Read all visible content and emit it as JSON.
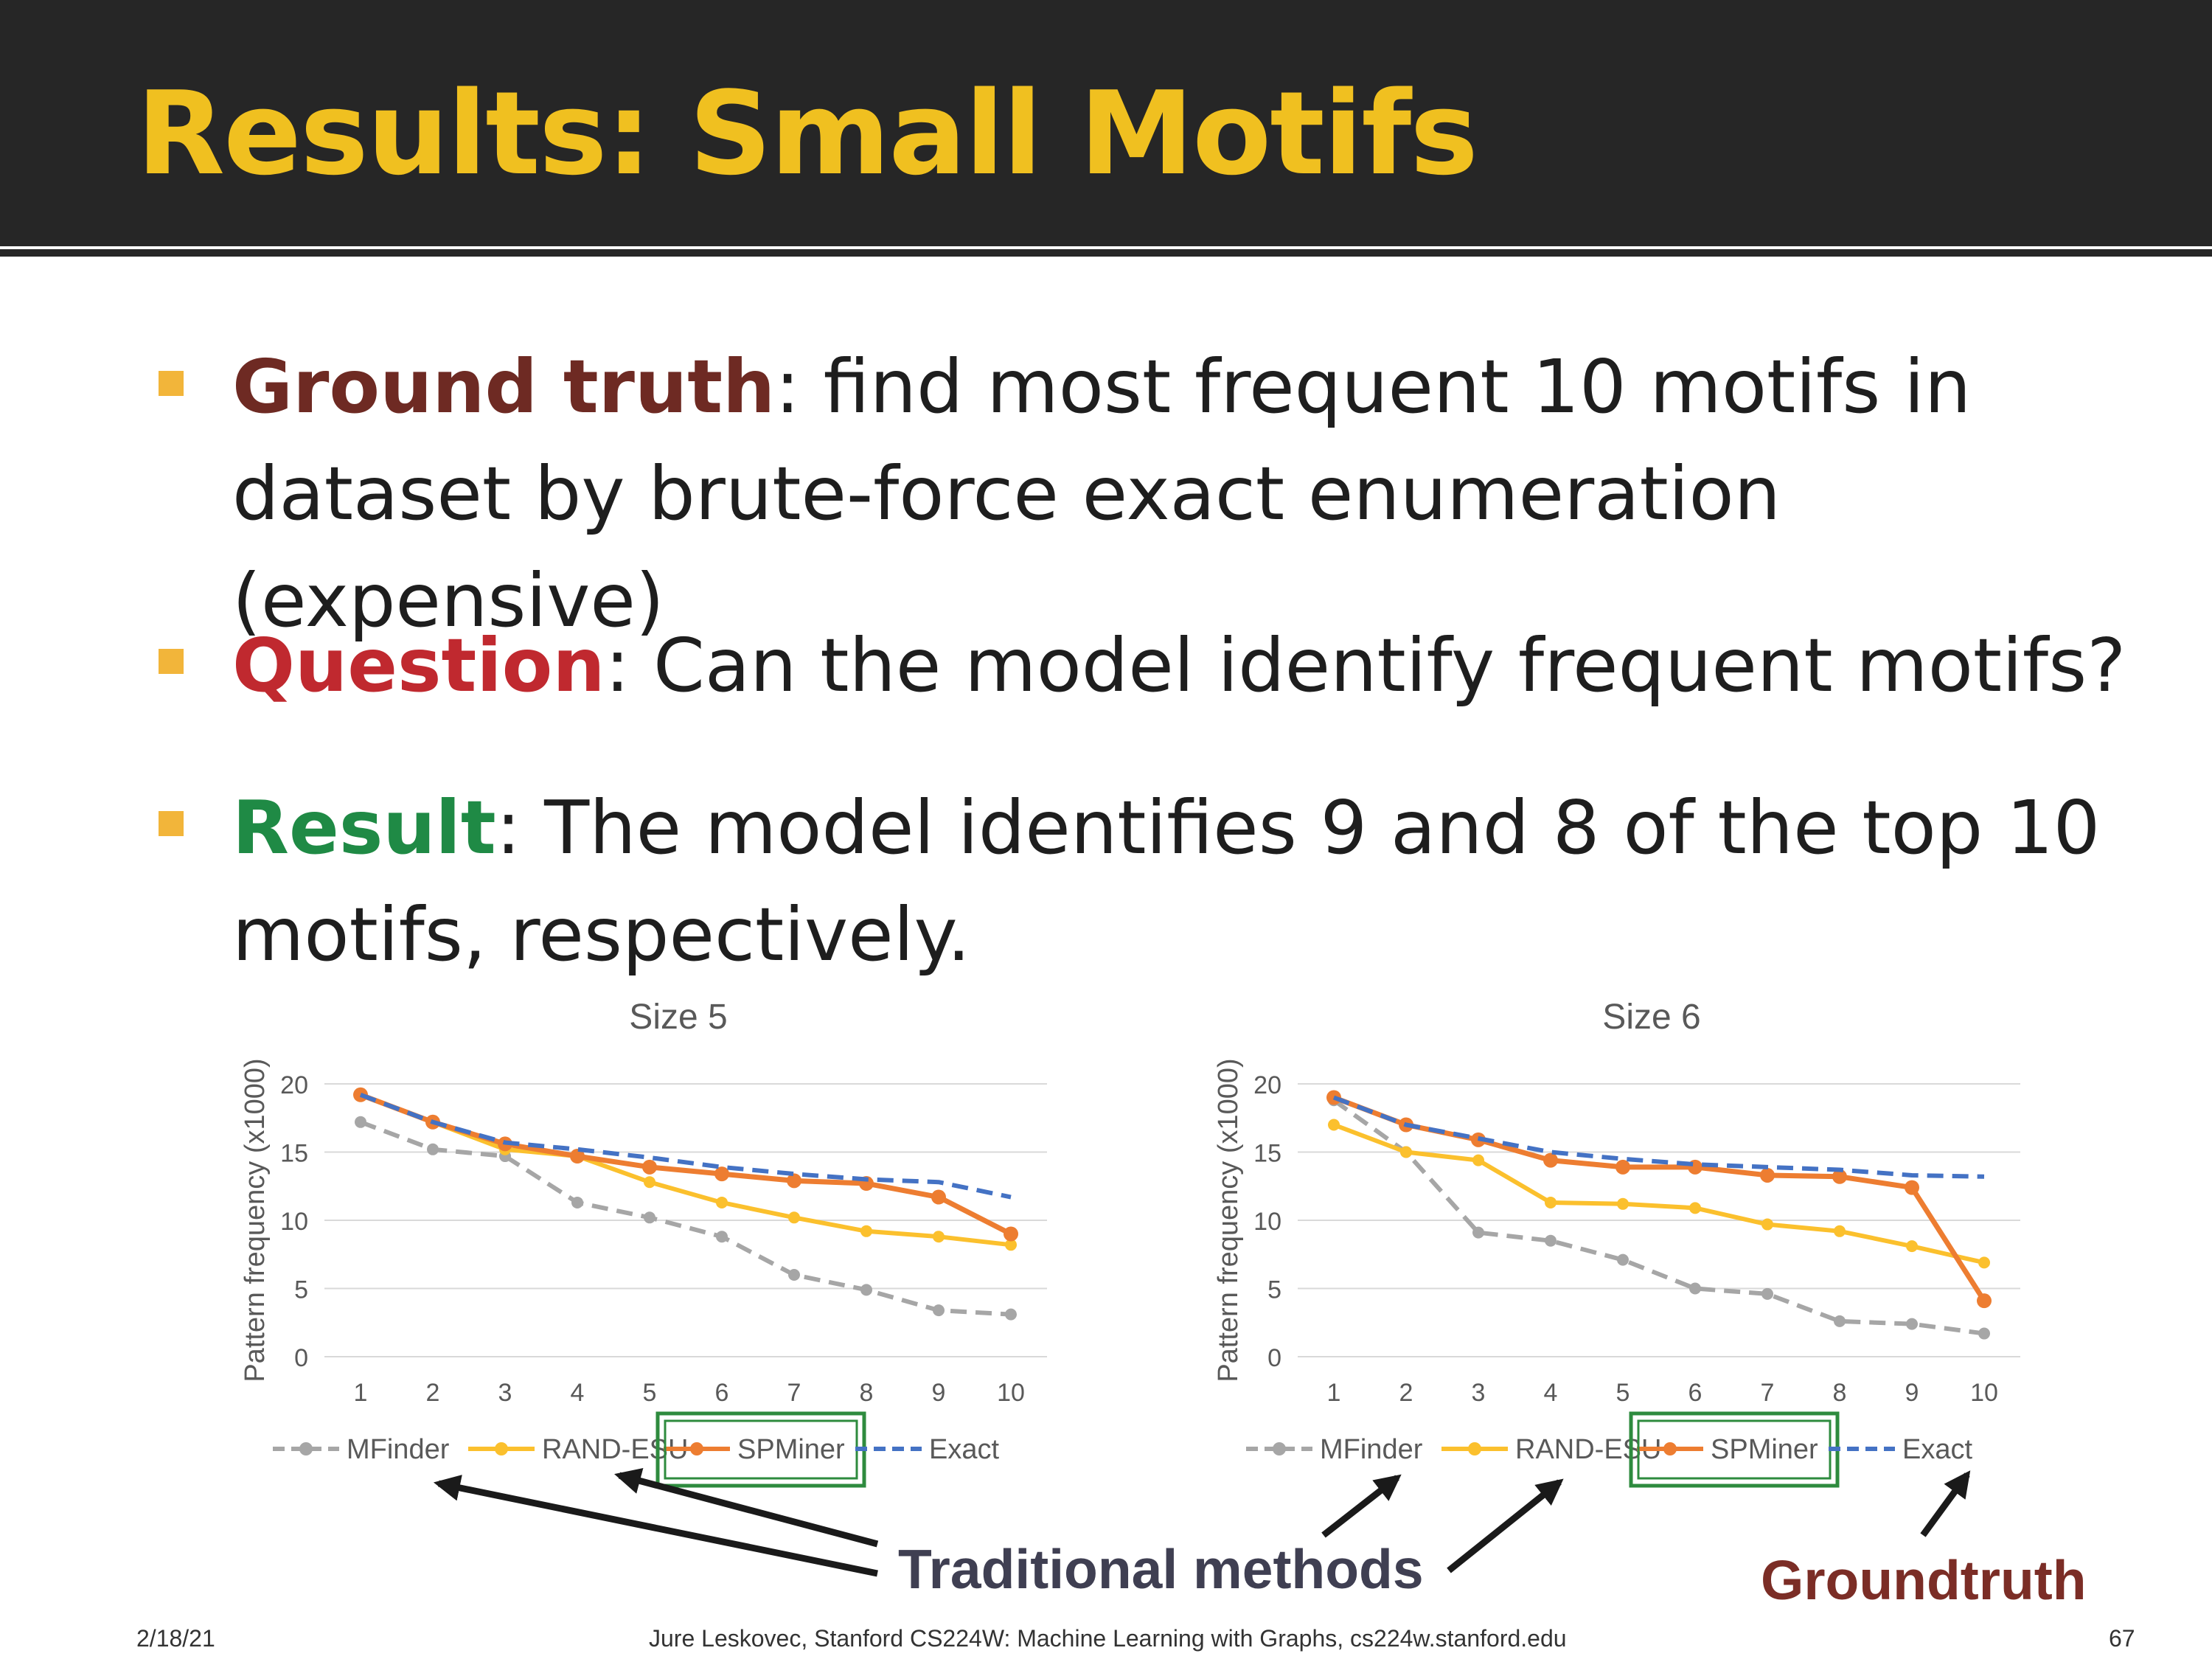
{
  "slide": {
    "title": "Results: Small Motifs",
    "bullets": [
      {
        "keyword": "Ground truth",
        "text": ": find most frequent 10 motifs in dataset by brute-force exact enumeration (expensive)"
      },
      {
        "keyword": "Question",
        "text": ": Can the model identify frequent motifs?"
      },
      {
        "keyword": "Result",
        "text": ": The model identifies 9 and 8 of the top 10 motifs, respectively."
      }
    ],
    "annotations": {
      "traditional": "Traditional methods",
      "groundtruth": "Groundtruth"
    },
    "footer": {
      "date": "2/18/21",
      "credit": "Jure Leskovec, Stanford CS224W: Machine Learning with Graphs, cs224w.stanford.edu",
      "page": "67"
    },
    "colors": {
      "title": "#f0c020",
      "header_bg": "#262626",
      "bullet": "#f2b53a",
      "ground_truth": "#6e2a23",
      "question": "#c0292f",
      "result": "#1f8a45",
      "highlight_box": "#2e8b3e"
    }
  },
  "chart_data": [
    {
      "type": "line",
      "title": "Size 5",
      "ylabel": "Pattern frequency (x1000)",
      "xlabel": "",
      "ylim": [
        0,
        20
      ],
      "yticks": [
        0,
        5,
        10,
        15,
        20
      ],
      "x": [
        1,
        2,
        3,
        4,
        5,
        6,
        7,
        8,
        9,
        10
      ],
      "grid": true,
      "legend_position": "bottom",
      "series": [
        {
          "name": "MFinder",
          "color": "#a6a6a6",
          "style": "dashed",
          "marker": true,
          "values": [
            17.2,
            15.2,
            14.7,
            11.3,
            10.2,
            8.8,
            6.0,
            4.9,
            3.4,
            3.1
          ]
        },
        {
          "name": "RAND-ESU",
          "color": "#fbc02d",
          "style": "solid",
          "marker": true,
          "values": [
            19.2,
            17.2,
            15.2,
            14.7,
            12.8,
            11.3,
            10.2,
            9.2,
            8.8,
            8.2
          ]
        },
        {
          "name": "SPMiner",
          "color": "#ed7d31",
          "style": "solid",
          "marker": true,
          "highlighted": true,
          "values": [
            19.2,
            17.2,
            15.6,
            14.7,
            13.9,
            13.4,
            12.9,
            12.7,
            11.7,
            9.0
          ]
        },
        {
          "name": "Exact",
          "color": "#4472c4",
          "style": "dashed",
          "marker": false,
          "values": [
            19.2,
            17.2,
            15.7,
            15.2,
            14.6,
            13.9,
            13.4,
            13.0,
            12.8,
            11.7
          ]
        }
      ]
    },
    {
      "type": "line",
      "title": "Size 6",
      "ylabel": "Pattern frequency (x1000)",
      "xlabel": "",
      "ylim": [
        0,
        20
      ],
      "yticks": [
        0,
        5,
        10,
        15,
        20
      ],
      "x": [
        1,
        2,
        3,
        4,
        5,
        6,
        7,
        8,
        9,
        10
      ],
      "grid": true,
      "legend_position": "bottom",
      "series": [
        {
          "name": "MFinder",
          "color": "#a6a6a6",
          "style": "dashed",
          "marker": true,
          "values": [
            18.8,
            15.0,
            9.1,
            8.5,
            7.1,
            5.0,
            4.6,
            2.6,
            2.4,
            1.7
          ]
        },
        {
          "name": "RAND-ESU",
          "color": "#fbc02d",
          "style": "solid",
          "marker": true,
          "values": [
            17.0,
            15.0,
            14.4,
            11.3,
            11.2,
            10.9,
            9.7,
            9.2,
            8.1,
            6.9
          ]
        },
        {
          "name": "SPMiner",
          "color": "#ed7d31",
          "style": "solid",
          "marker": true,
          "highlighted": true,
          "values": [
            19.0,
            17.0,
            15.9,
            14.4,
            13.9,
            13.9,
            13.3,
            13.2,
            12.4,
            4.1
          ]
        },
        {
          "name": "Exact",
          "color": "#4472c4",
          "style": "dashed",
          "marker": false,
          "values": [
            19.0,
            17.0,
            16.0,
            15.0,
            14.5,
            14.1,
            13.9,
            13.7,
            13.3,
            13.2
          ]
        }
      ]
    }
  ]
}
